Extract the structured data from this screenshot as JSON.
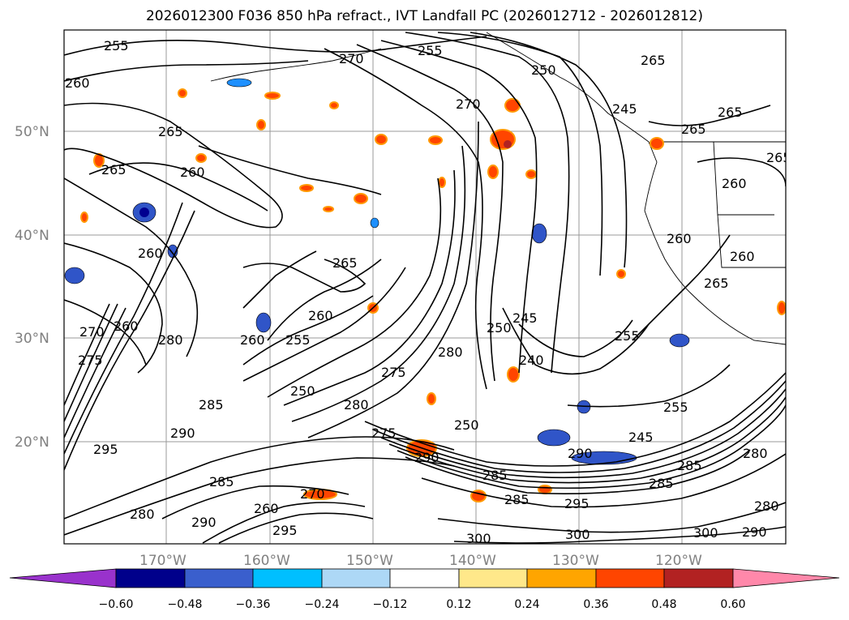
{
  "title": "2026012300 F036 850 hPa refract., IVT Landfall PC (2026012712 - 2026012812)",
  "map": {
    "lon_labels": [
      "170°W",
      "160°W",
      "150°W",
      "140°W",
      "130°W",
      "120°W"
    ],
    "lat_labels": [
      "50°N",
      "40°N",
      "30°N",
      "20°N"
    ],
    "contour_labels": [
      "255",
      "270",
      "255",
      "250",
      "260",
      "270",
      "245",
      "265",
      "265",
      "260",
      "265",
      "260",
      "265",
      "260",
      "265",
      "260",
      "260",
      "270",
      "260",
      "280",
      "275",
      "285",
      "255",
      "260",
      "255",
      "280",
      "275",
      "250",
      "280",
      "250",
      "245",
      "240",
      "255",
      "260",
      "245",
      "275",
      "285",
      "280",
      "290",
      "250",
      "295",
      "290",
      "285",
      "285",
      "270",
      "280",
      "260",
      "290",
      "295",
      "285",
      "295",
      "300",
      "300",
      "300",
      "290",
      "280",
      "285",
      "265",
      "265",
      "290",
      "265"
    ],
    "shaded_colors": {
      "blue_dark": "#000090",
      "blue_mid": "#3055c8",
      "blue_light": "#1e90ff",
      "orange": "#ff9900",
      "red_orange": "#ff4500",
      "dark_red": "#b22222",
      "yellow": "#ffe680"
    }
  },
  "colorbar": {
    "ticks": [
      "−0.60",
      "−0.48",
      "−0.36",
      "−0.24",
      "−0.12",
      "0.12",
      "0.24",
      "0.36",
      "0.48",
      "0.60"
    ],
    "colors": [
      "#9932cc",
      "#00008b",
      "#3a5fcd",
      "#00bfff",
      "#add8f6",
      "#ffffff",
      "#ffe88a",
      "#ffa500",
      "#ff4500",
      "#b22222",
      "#ff88aa"
    ]
  }
}
